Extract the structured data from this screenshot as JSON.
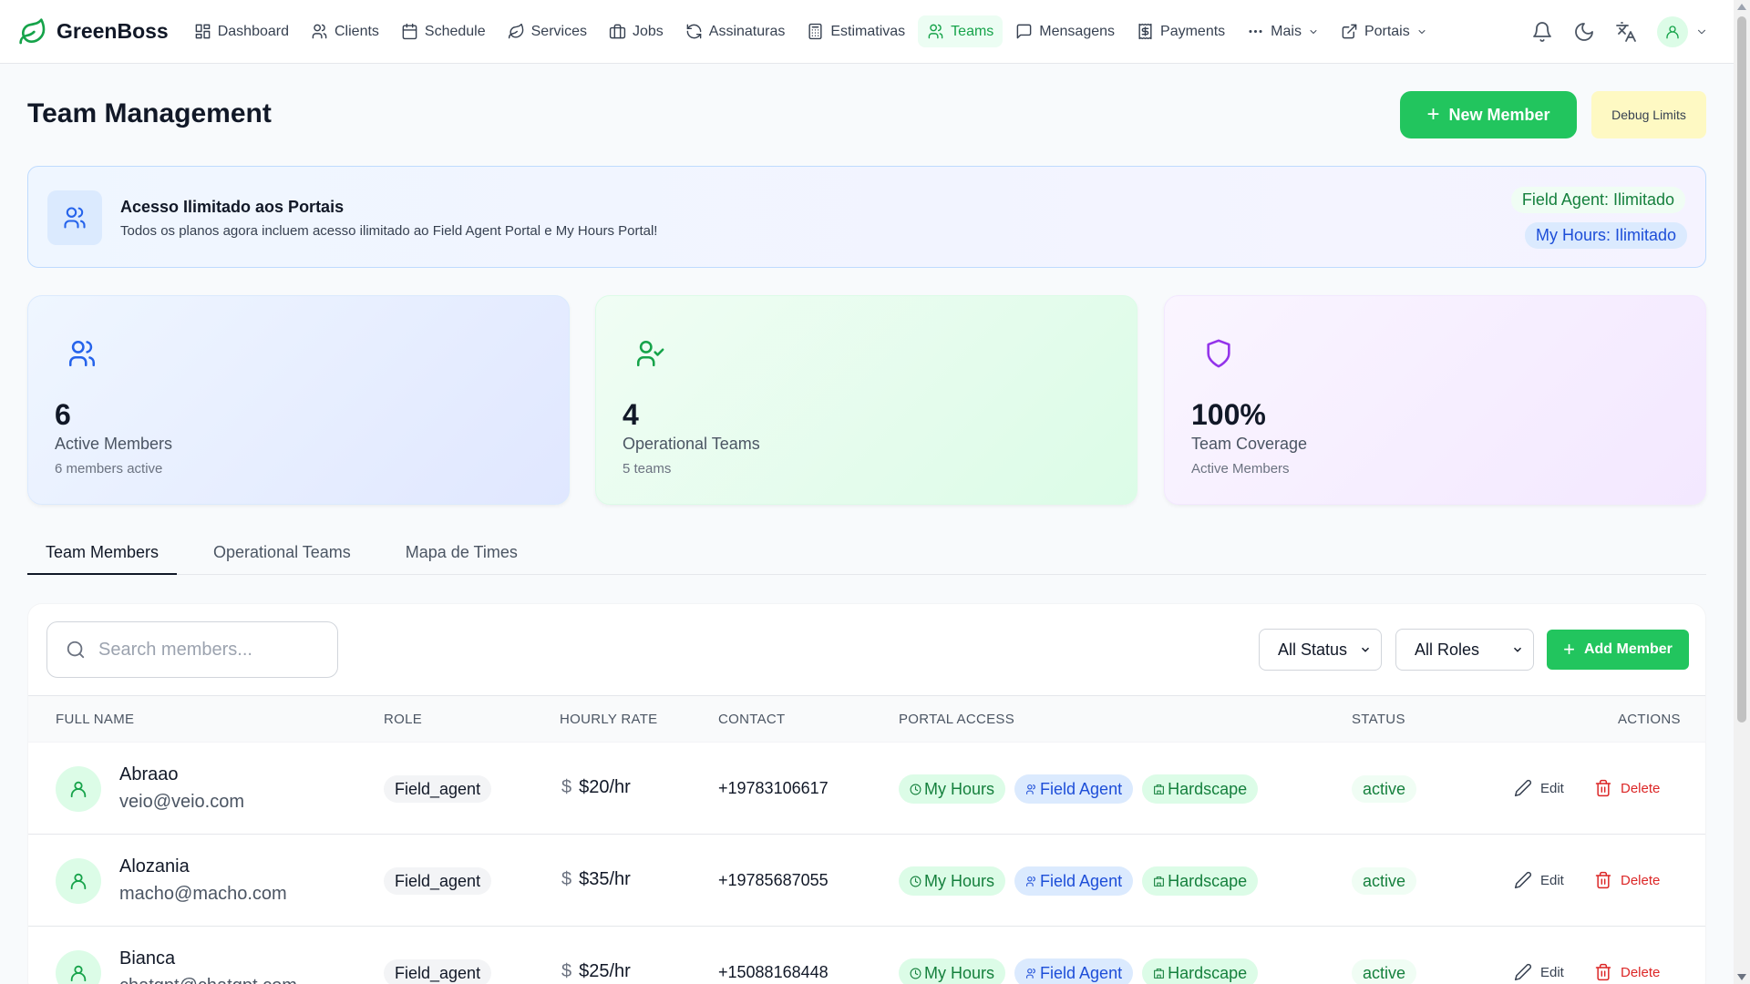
{
  "brand": {
    "name": "GreenBoss",
    "logo_icon": "leaf-icon",
    "color": "#16a34a"
  },
  "nav": {
    "items": [
      {
        "label": "Dashboard",
        "icon": "dashboard-icon"
      },
      {
        "label": "Clients",
        "icon": "users-icon"
      },
      {
        "label": "Schedule",
        "icon": "calendar-icon"
      },
      {
        "label": "Services",
        "icon": "leaf-icon"
      },
      {
        "label": "Jobs",
        "icon": "briefcase-icon"
      },
      {
        "label": "Assinaturas",
        "icon": "refresh-icon"
      },
      {
        "label": "Estimativas",
        "icon": "calculator-icon"
      },
      {
        "label": "Teams",
        "icon": "users-icon",
        "active": true
      },
      {
        "label": "Mensagens",
        "icon": "message-icon"
      },
      {
        "label": "Payments",
        "icon": "receipt-icon"
      },
      {
        "label": "Mais",
        "icon": "more-icon"
      },
      {
        "label": "Portais",
        "icon": "external-link-icon"
      }
    ]
  },
  "header": {
    "title": "Team Management",
    "new_member_label": "New Member",
    "debug_label": "Debug Limits"
  },
  "banner": {
    "title": "Acesso Ilimitado aos Portais",
    "subtitle": "Todos os planos agora incluem acesso ilimitado ao Field Agent Portal e My Hours Portal!",
    "field_agent": "Field Agent: Ilimitado",
    "my_hours": "My Hours: Ilimitado"
  },
  "stats": [
    {
      "value": "6",
      "label": "Active Members",
      "sub": "6 members active",
      "icon": "users-icon",
      "color": "#2563eb"
    },
    {
      "value": "4",
      "label": "Operational Teams",
      "sub": "5 teams",
      "icon": "user-check-icon",
      "color": "#16a34a"
    },
    {
      "value": "100%",
      "label": "Team Coverage",
      "sub": "Active Members",
      "icon": "shield-icon",
      "color": "#9333ea"
    }
  ],
  "tabs": [
    {
      "label": "Team Members",
      "active": true
    },
    {
      "label": "Operational Teams"
    },
    {
      "label": "Mapa de Times"
    }
  ],
  "filters": {
    "search_placeholder": "Search members...",
    "status_selected": "All Status",
    "roles_selected": "All Roles",
    "add_member_label": "Add Member"
  },
  "table": {
    "columns": [
      "FULL NAME",
      "ROLE",
      "HOURLY RATE",
      "CONTACT",
      "PORTAL ACCESS",
      "STATUS",
      "ACTIONS"
    ],
    "edit_label": "Edit",
    "delete_label": "Delete",
    "rows": [
      {
        "name": "Abraao",
        "email": "veio@veio.com",
        "role": "Field_agent",
        "rate": "$20/hr",
        "contact": "+19783106617",
        "portals": [
          "My Hours",
          "Field Agent",
          "Hardscape"
        ],
        "status": "active"
      },
      {
        "name": "Alozania",
        "email": "macho@macho.com",
        "role": "Field_agent",
        "rate": "$35/hr",
        "contact": "+19785687055",
        "portals": [
          "My Hours",
          "Field Agent",
          "Hardscape"
        ],
        "status": "active"
      },
      {
        "name": "Bianca",
        "email": "chatgpt@chatgpt.com",
        "role": "Field_agent",
        "rate": "$25/hr",
        "contact": "+15088168448",
        "portals": [
          "My Hours",
          "Field Agent",
          "Hardscape"
        ],
        "status": "active"
      }
    ]
  }
}
